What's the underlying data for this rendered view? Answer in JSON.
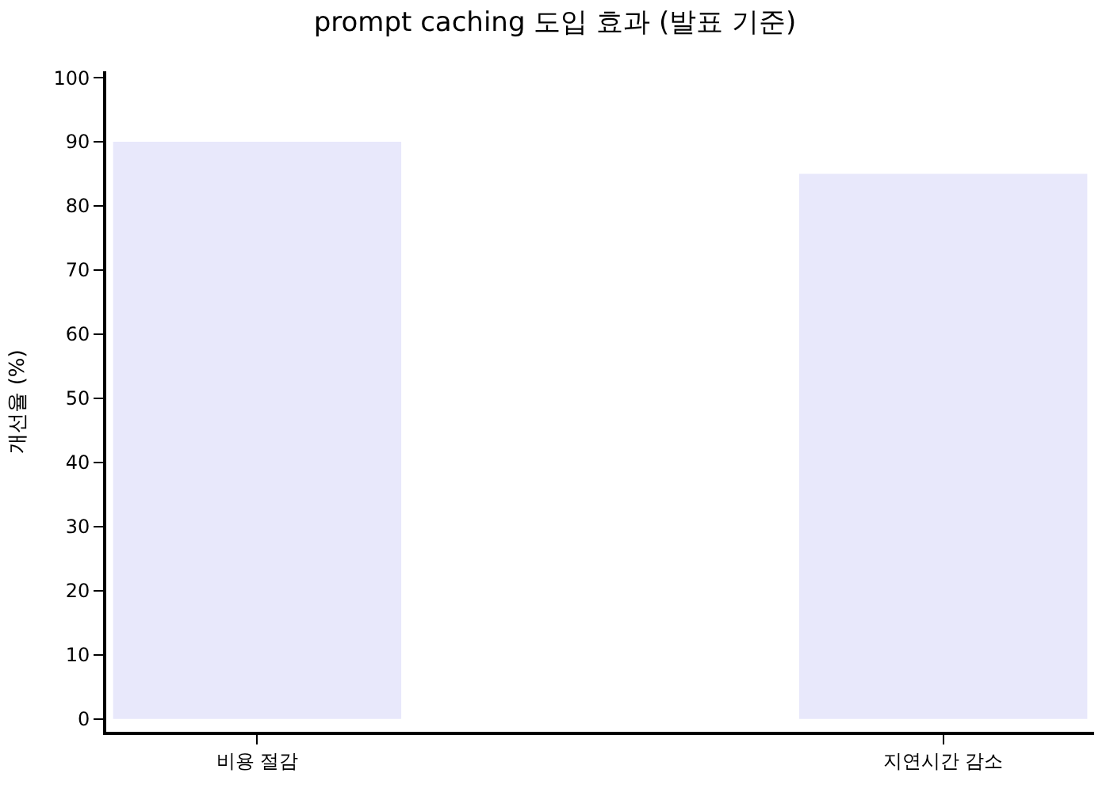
{
  "chart_data": {
    "type": "bar",
    "title": "prompt caching 도입 효과 (발표 기준)",
    "ylabel": "개선율 (%)",
    "categories": [
      "비용 절감",
      "지연시간 감소"
    ],
    "values": [
      90,
      85
    ],
    "color": "#e8e8fb",
    "ylim": [
      -2,
      101
    ],
    "yticks": [
      0,
      10,
      20,
      30,
      40,
      50,
      60,
      70,
      80,
      90,
      100
    ]
  }
}
